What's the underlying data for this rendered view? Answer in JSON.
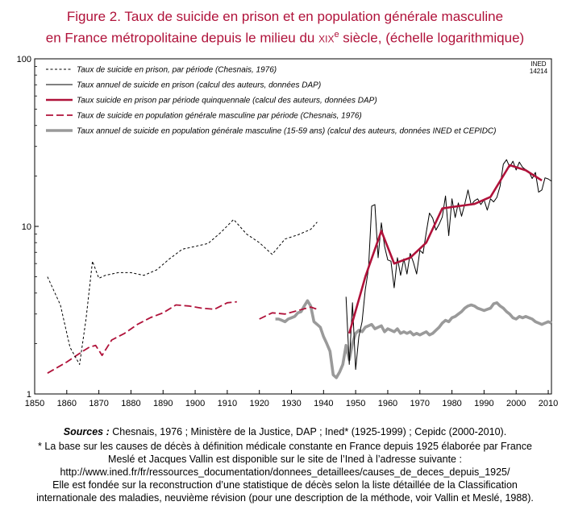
{
  "title_line1": "Figure 2. Taux de suicide en prison et en population générale masculine",
  "title_line2_pre": "en France métropolitaine depuis le milieu du ",
  "title_line2_century": "xix",
  "title_line2_sup": "e",
  "title_line2_post": " siècle, (échelle logarithmique)",
  "ined_code_line1": "INED",
  "ined_code_line2": "14214",
  "sources_prefix": "Sources :",
  "sources_text": " Chesnais, 1976 ; Ministère de la Justice, DAP ; Ined* (1925-1999) ; Cepidc (2000-2010).",
  "notes": [
    "* La base sur les causes de décès à définition médicale constante en France depuis 1925 élaborée par France",
    "Meslé et Jacques Vallin est disponible sur le site de l’Ined à l’adresse suivante :",
    "http://www.ined.fr/fr/ressources_documentation/donnees_detaillees/causes_de_deces_depuis_1925/",
    "Elle est fondée sur la reconstruction d’une statistique de décès selon la liste détaillée de la Classification",
    "internationale des maladies, neuvième révision (pour une description de la méthode, voir Vallin et Meslé, 1988)."
  ],
  "colors": {
    "title": "#b0123a",
    "prison_quinquennal": "#b0123a",
    "general_period": "#b0123a",
    "general_annual": "#9a9a9a",
    "black": "#000000"
  },
  "chart_data": {
    "type": "line",
    "yscale": "log",
    "xlim": [
      1850,
      2011
    ],
    "ylim": [
      1,
      100
    ],
    "xticks": [
      "1850",
      "1860",
      "1870",
      "1880",
      "1890",
      "1900",
      "1910",
      "1920",
      "1930",
      "1940",
      "1950",
      "1960",
      "1970",
      "1980",
      "1990",
      "2000",
      "2010"
    ],
    "yticks": [
      "1",
      "10",
      "100"
    ],
    "legend_position": "top-left",
    "series": [
      {
        "name": "Taux de suicide en prison, par période (Chesnais, 1976)",
        "style": "dashed-black",
        "segments": [
          [
            [
              1854,
              5.0
            ],
            [
              1858,
              3.4
            ],
            [
              1861,
              1.9
            ],
            [
              1864,
              1.5
            ],
            [
              1866,
              2.8
            ],
            [
              1868,
              6.2
            ],
            [
              1870,
              4.9
            ],
            [
              1872,
              5.1
            ],
            [
              1876,
              5.3
            ],
            [
              1880,
              5.3
            ],
            [
              1884,
              5.1
            ],
            [
              1888,
              5.5
            ],
            [
              1892,
              6.4
            ],
            [
              1896,
              7.3
            ],
            [
              1900,
              7.6
            ],
            [
              1904,
              7.9
            ],
            [
              1908,
              9.2
            ],
            [
              1912,
              11.0
            ],
            [
              1916,
              9.0
            ],
            [
              1920,
              8.0
            ],
            [
              1924,
              6.8
            ],
            [
              1928,
              8.4
            ],
            [
              1932,
              8.9
            ],
            [
              1936,
              9.6
            ],
            [
              1938,
              10.6
            ]
          ]
        ]
      },
      {
        "name": "Taux annuel de suicide en prison (calcul des auteurs, données DAP)",
        "style": "thin-black",
        "segments": [
          [
            [
              1947,
              3.8
            ],
            [
              1948,
              1.5
            ],
            [
              1949,
              3.5
            ],
            [
              1950,
              1.4
            ],
            [
              1951,
              2.2
            ],
            [
              1952,
              2.7
            ],
            [
              1953,
              4.2
            ],
            [
              1954,
              5.6
            ],
            [
              1955,
              13.2
            ],
            [
              1956,
              13.5
            ],
            [
              1957,
              6.5
            ],
            [
              1958,
              10.5
            ],
            [
              1959,
              7.6
            ],
            [
              1960,
              6.3
            ],
            [
              1961,
              6.2
            ],
            [
              1962,
              4.3
            ],
            [
              1963,
              6.5
            ],
            [
              1964,
              5.1
            ],
            [
              1965,
              6.4
            ],
            [
              1966,
              5.2
            ],
            [
              1967,
              6.9
            ],
            [
              1968,
              6.1
            ],
            [
              1969,
              5.2
            ],
            [
              1970,
              7.2
            ],
            [
              1971,
              6.9
            ],
            [
              1972,
              9.2
            ],
            [
              1973,
              12.0
            ],
            [
              1974,
              11.2
            ],
            [
              1975,
              9.5
            ],
            [
              1976,
              10.3
            ],
            [
              1977,
              11.4
            ],
            [
              1978,
              15.2
            ],
            [
              1979,
              8.8
            ],
            [
              1980,
              14.6
            ],
            [
              1981,
              11.3
            ],
            [
              1982,
              13.8
            ],
            [
              1983,
              11.5
            ],
            [
              1984,
              13.6
            ],
            [
              1985,
              16.5
            ],
            [
              1986,
              13.4
            ],
            [
              1987,
              14.2
            ],
            [
              1988,
              14.6
            ],
            [
              1989,
              13.5
            ],
            [
              1990,
              14.4
            ],
            [
              1991,
              12.5
            ],
            [
              1992,
              14.6
            ],
            [
              1993,
              14.0
            ],
            [
              1994,
              14.9
            ],
            [
              1995,
              17.4
            ],
            [
              1996,
              23.5
            ],
            [
              1997,
              25.0
            ],
            [
              1998,
              22.6
            ],
            [
              1999,
              24.5
            ],
            [
              2000,
              21.7
            ],
            [
              2001,
              24.2
            ],
            [
              2002,
              22.5
            ],
            [
              2003,
              21.8
            ],
            [
              2004,
              21.2
            ],
            [
              2005,
              19.3
            ],
            [
              2006,
              21.0
            ],
            [
              2007,
              16.0
            ],
            [
              2008,
              16.5
            ],
            [
              2009,
              19.5
            ],
            [
              2010,
              19.2
            ],
            [
              2011,
              18.6
            ]
          ]
        ]
      },
      {
        "name": "Taux suicide en prison par période quinquennale (calcul des auteurs, données DAP)",
        "style": "thick-crimson",
        "segments": [
          [
            [
              1948,
              2.3
            ],
            [
              1953,
              5.0
            ],
            [
              1958,
              9.4
            ],
            [
              1962,
              6.0
            ],
            [
              1967,
              6.5
            ],
            [
              1972,
              8.0
            ],
            [
              1977,
              12.8
            ],
            [
              1982,
              13.2
            ],
            [
              1987,
              13.6
            ],
            [
              1992,
              15.0
            ],
            [
              1998,
              23.2
            ],
            [
              2003,
              21.6
            ],
            [
              2008,
              18.8
            ]
          ]
        ]
      },
      {
        "name": "Taux de suicide en population générale masculine par période (Chesnais, 1976)",
        "style": "dashed-crimson",
        "segments": [
          [
            [
              1854,
              1.33
            ],
            [
              1860,
              1.55
            ],
            [
              1865,
              1.8
            ],
            [
              1867,
              1.9
            ],
            [
              1869,
              1.95
            ],
            [
              1871,
              1.7
            ],
            [
              1874,
              2.1
            ],
            [
              1878,
              2.3
            ],
            [
              1882,
              2.6
            ],
            [
              1886,
              2.85
            ],
            [
              1890,
              3.05
            ],
            [
              1894,
              3.4
            ],
            [
              1898,
              3.35
            ],
            [
              1902,
              3.25
            ],
            [
              1906,
              3.2
            ],
            [
              1910,
              3.5
            ],
            [
              1913,
              3.55
            ]
          ],
          [
            [
              1920,
              2.8
            ],
            [
              1924,
              3.05
            ],
            [
              1928,
              3.0
            ],
            [
              1932,
              3.15
            ],
            [
              1936,
              3.3
            ],
            [
              1938,
              3.2
            ]
          ]
        ]
      },
      {
        "name": "Taux annuel de suicide en population générale masculine (15-59 ans) (calcul des auteurs, données INED et CEPIDC)",
        "style": "thick-grey",
        "segments": [
          [
            [
              1925,
              2.8
            ],
            [
              1926,
              2.8
            ],
            [
              1927,
              2.75
            ],
            [
              1928,
              2.7
            ],
            [
              1929,
              2.8
            ],
            [
              1930,
              2.85
            ],
            [
              1931,
              2.9
            ],
            [
              1932,
              3.05
            ],
            [
              1933,
              3.1
            ],
            [
              1934,
              3.35
            ],
            [
              1935,
              3.6
            ],
            [
              1936,
              3.35
            ],
            [
              1937,
              2.7
            ],
            [
              1938,
              2.6
            ],
            [
              1939,
              2.5
            ],
            [
              1940,
              2.2
            ],
            [
              1941,
              2.0
            ],
            [
              1942,
              1.8
            ],
            [
              1943,
              1.3
            ],
            [
              1944,
              1.25
            ],
            [
              1945,
              1.35
            ],
            [
              1946,
              1.5
            ],
            [
              1947,
              1.95
            ],
            [
              1948,
              1.6
            ],
            [
              1949,
              2.0
            ],
            [
              1950,
              2.3
            ],
            [
              1951,
              2.4
            ],
            [
              1952,
              2.35
            ],
            [
              1953,
              2.5
            ],
            [
              1954,
              2.55
            ],
            [
              1955,
              2.6
            ],
            [
              1956,
              2.45
            ],
            [
              1957,
              2.5
            ],
            [
              1958,
              2.55
            ],
            [
              1959,
              2.35
            ],
            [
              1960,
              2.45
            ],
            [
              1961,
              2.4
            ],
            [
              1962,
              2.35
            ],
            [
              1963,
              2.45
            ],
            [
              1964,
              2.3
            ],
            [
              1965,
              2.35
            ],
            [
              1966,
              2.3
            ],
            [
              1967,
              2.35
            ],
            [
              1968,
              2.25
            ],
            [
              1969,
              2.3
            ],
            [
              1970,
              2.25
            ],
            [
              1971,
              2.3
            ],
            [
              1972,
              2.35
            ],
            [
              1973,
              2.25
            ],
            [
              1974,
              2.3
            ],
            [
              1975,
              2.4
            ],
            [
              1976,
              2.5
            ],
            [
              1977,
              2.65
            ],
            [
              1978,
              2.75
            ],
            [
              1979,
              2.7
            ],
            [
              1980,
              2.85
            ],
            [
              1981,
              2.9
            ],
            [
              1982,
              3.0
            ],
            [
              1983,
              3.1
            ],
            [
              1984,
              3.25
            ],
            [
              1985,
              3.35
            ],
            [
              1986,
              3.4
            ],
            [
              1987,
              3.35
            ],
            [
              1988,
              3.25
            ],
            [
              1989,
              3.2
            ],
            [
              1990,
              3.15
            ],
            [
              1991,
              3.2
            ],
            [
              1992,
              3.25
            ],
            [
              1993,
              3.45
            ],
            [
              1994,
              3.5
            ],
            [
              1995,
              3.35
            ],
            [
              1996,
              3.25
            ],
            [
              1997,
              3.1
            ],
            [
              1998,
              3.0
            ],
            [
              1999,
              2.85
            ],
            [
              2000,
              2.8
            ],
            [
              2001,
              2.9
            ],
            [
              2002,
              2.85
            ],
            [
              2003,
              2.9
            ],
            [
              2004,
              2.85
            ],
            [
              2005,
              2.8
            ],
            [
              2006,
              2.7
            ],
            [
              2007,
              2.65
            ],
            [
              2008,
              2.6
            ],
            [
              2009,
              2.65
            ],
            [
              2010,
              2.7
            ],
            [
              2011,
              2.65
            ]
          ]
        ]
      }
    ]
  }
}
